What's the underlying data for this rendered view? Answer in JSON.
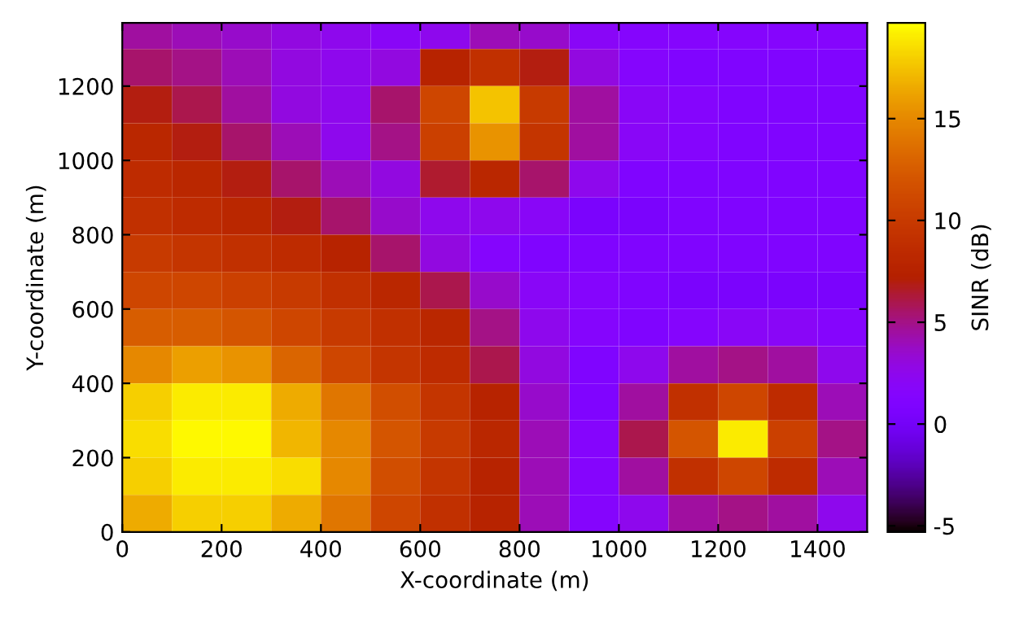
{
  "chart_data": {
    "type": "heatmap",
    "xlabel": "X-coordinate (m)",
    "ylabel": "Y-coordinate (m)",
    "clabel": "SINR (dB)",
    "x": [
      50,
      150,
      250,
      350,
      450,
      550,
      650,
      750,
      850,
      950,
      1050,
      1150,
      1250,
      1350,
      1450
    ],
    "y": [
      1350,
      1250,
      1150,
      1050,
      950,
      850,
      750,
      650,
      550,
      450,
      350,
      250,
      150,
      50
    ],
    "cells": [
      [
        4.5,
        4,
        3.5,
        3,
        2.5,
        2,
        2.5,
        4,
        3.5,
        2,
        1.5,
        1.5,
        1.5,
        1.5,
        1.5
      ],
      [
        5.5,
        5,
        4,
        3,
        2.5,
        3,
        7.5,
        9,
        7,
        3,
        1.5,
        1,
        1,
        1,
        1
      ],
      [
        7,
        6,
        4.5,
        3,
        2.5,
        5.5,
        11,
        17.5,
        10,
        4.5,
        2,
        1.5,
        1,
        1,
        1
      ],
      [
        8,
        7,
        5.5,
        4,
        2.5,
        5,
        10.5,
        15.5,
        9.5,
        4.5,
        2,
        1.5,
        1,
        1,
        1
      ],
      [
        8.5,
        8,
        7,
        5.5,
        4,
        3,
        6.5,
        8,
        5.5,
        2.5,
        1,
        1,
        1,
        1,
        1
      ],
      [
        9,
        8.5,
        8,
        7,
        5.5,
        3.5,
        2.5,
        2.5,
        2,
        0.5,
        0.5,
        1,
        1,
        1,
        1
      ],
      [
        10,
        9.5,
        9,
        8.5,
        7.5,
        5.5,
        3,
        1.5,
        1,
        1,
        1,
        1,
        1,
        1,
        1
      ],
      [
        11,
        11,
        10.5,
        10,
        9,
        8,
        6,
        3.5,
        2,
        1.5,
        1,
        0.5,
        0.5,
        0.5,
        0.5
      ],
      [
        12.5,
        12.5,
        12,
        11,
        10,
        9,
        8,
        5,
        2.5,
        1.5,
        1,
        1.5,
        2,
        2,
        1.5
      ],
      [
        15,
        16,
        15.5,
        13,
        11,
        9.5,
        8.5,
        6,
        3,
        1,
        2.5,
        4.5,
        5,
        4.5,
        2.5
      ],
      [
        18,
        19,
        19,
        16.5,
        14,
        11.5,
        9.5,
        7.5,
        3.5,
        1,
        4.5,
        9,
        11,
        8.5,
        4
      ],
      [
        18.5,
        19.5,
        19.5,
        17,
        15,
        12,
        10,
        8,
        4,
        1.5,
        6,
        12,
        19,
        10.5,
        5
      ],
      [
        18,
        19,
        19,
        18.5,
        15,
        11.5,
        9.5,
        7.5,
        4,
        1.5,
        4.5,
        9,
        11,
        8.5,
        4
      ],
      [
        16.5,
        18,
        18,
        16.5,
        14,
        11,
        9,
        7.5,
        4,
        1.5,
        2.5,
        4.5,
        5,
        4.5,
        2.5
      ]
    ],
    "xlim": [
      0,
      1500
    ],
    "ylim": [
      0,
      1370
    ],
    "xticks": [
      0,
      200,
      400,
      600,
      800,
      1000,
      1200,
      1400
    ],
    "yticks": [
      0,
      200,
      400,
      600,
      800,
      1000,
      1200
    ],
    "clim": [
      -5.3,
      19.7
    ],
    "cticks": [
      -5,
      0,
      5,
      10,
      15
    ]
  }
}
